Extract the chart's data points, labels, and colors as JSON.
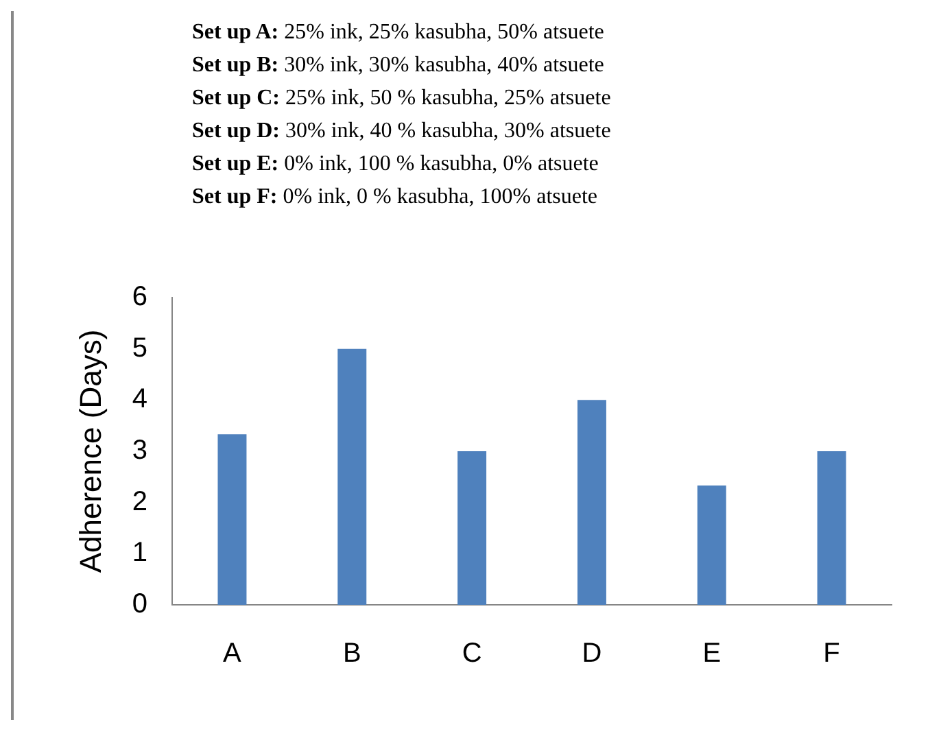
{
  "chart_data": {
    "type": "bar",
    "ylabel": "Adherence (Days)",
    "annotations": [
      "Set up A: 25%  ink, 25%  kasubha, 50%  atsuete",
      "Set up B: 30%  ink, 30%  kasubha, 40%  atsuete",
      "Set up C: 25%  ink, 50 % kasubha, 25% atsuete",
      "Set up D: 30%  ink, 40 % kasubha, 30% atsuete",
      "Set up E: 0%  ink, 100 % kasubha, 0% atsuete",
      "Set up F: 0%  ink, 0 % kasubha, 100% atsuete"
    ],
    "categories": [
      "A",
      "B",
      "C",
      "D",
      "E",
      "F"
    ],
    "values": [
      3.33,
      5,
      3,
      4,
      2.33,
      3
    ],
    "color": "#4f81bd",
    "ylim": [
      0,
      6
    ],
    "yticks": [
      0,
      1,
      2,
      3,
      4,
      5,
      6
    ],
    "grid": false,
    "legend": false
  }
}
